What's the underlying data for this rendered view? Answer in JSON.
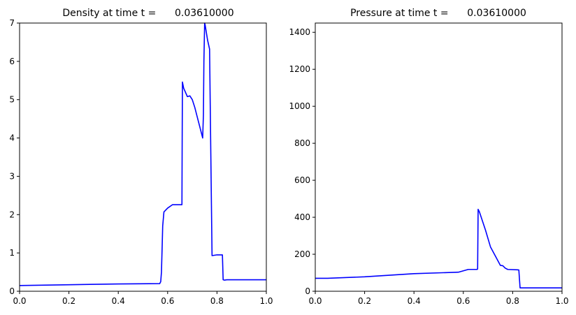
{
  "chart_data": [
    {
      "type": "line",
      "title": "Density at time t =      0.03610000",
      "xlabel": "",
      "ylabel": "",
      "xlim": [
        0.0,
        1.0
      ],
      "ylim": [
        0,
        7
      ],
      "xticks": [
        "0.0",
        "0.2",
        "0.4",
        "0.6",
        "0.8",
        "1.0"
      ],
      "yticks": [
        "0",
        "1",
        "2",
        "3",
        "4",
        "5",
        "6",
        "7"
      ],
      "grid": false,
      "series": [
        {
          "color": "#0000ff",
          "x": [
            0.0,
            0.2,
            0.4,
            0.568,
            0.572,
            0.575,
            0.578,
            0.58,
            0.585,
            0.6,
            0.62,
            0.655,
            0.658,
            0.659,
            0.66,
            0.665,
            0.68,
            0.69,
            0.7,
            0.71,
            0.72,
            0.73,
            0.742,
            0.745,
            0.747,
            0.75,
            0.752,
            0.762,
            0.77,
            0.775,
            0.78,
            0.8,
            0.822,
            0.825,
            0.83,
            0.84,
            1.0
          ],
          "y": [
            0.15,
            0.17,
            0.19,
            0.2,
            0.25,
            0.5,
            1.2,
            1.7,
            2.07,
            2.17,
            2.26,
            2.26,
            2.26,
            4.0,
            5.46,
            5.3,
            5.08,
            5.1,
            5.0,
            4.8,
            4.55,
            4.3,
            4.0,
            4.6,
            6.0,
            7.0,
            6.95,
            6.55,
            6.32,
            3.6,
            0.93,
            0.95,
            0.95,
            0.3,
            0.29,
            0.3,
            0.3
          ]
        }
      ]
    },
    {
      "type": "line",
      "title": "Pressure at time t =      0.03610000",
      "xlabel": "",
      "ylabel": "",
      "xlim": [
        0.0,
        1.0
      ],
      "ylim": [
        0,
        1450
      ],
      "xticks": [
        "0.0",
        "0.2",
        "0.4",
        "0.6",
        "0.8",
        "1.0"
      ],
      "yticks": [
        "0",
        "200",
        "400",
        "600",
        "800",
        "1000",
        "1200",
        "1400"
      ],
      "grid": false,
      "series": [
        {
          "color": "#0000ff",
          "x": [
            0.0,
            0.05,
            0.2,
            0.4,
            0.58,
            0.62,
            0.655,
            0.658,
            0.66,
            0.665,
            0.69,
            0.71,
            0.73,
            0.75,
            0.76,
            0.77,
            0.78,
            0.82,
            0.825,
            0.83,
            1.0
          ],
          "y": [
            70,
            70,
            78,
            95,
            103,
            118,
            118,
            120,
            443,
            430,
            330,
            240,
            190,
            140,
            138,
            125,
            118,
            116,
            115,
            18,
            18
          ]
        }
      ]
    }
  ]
}
